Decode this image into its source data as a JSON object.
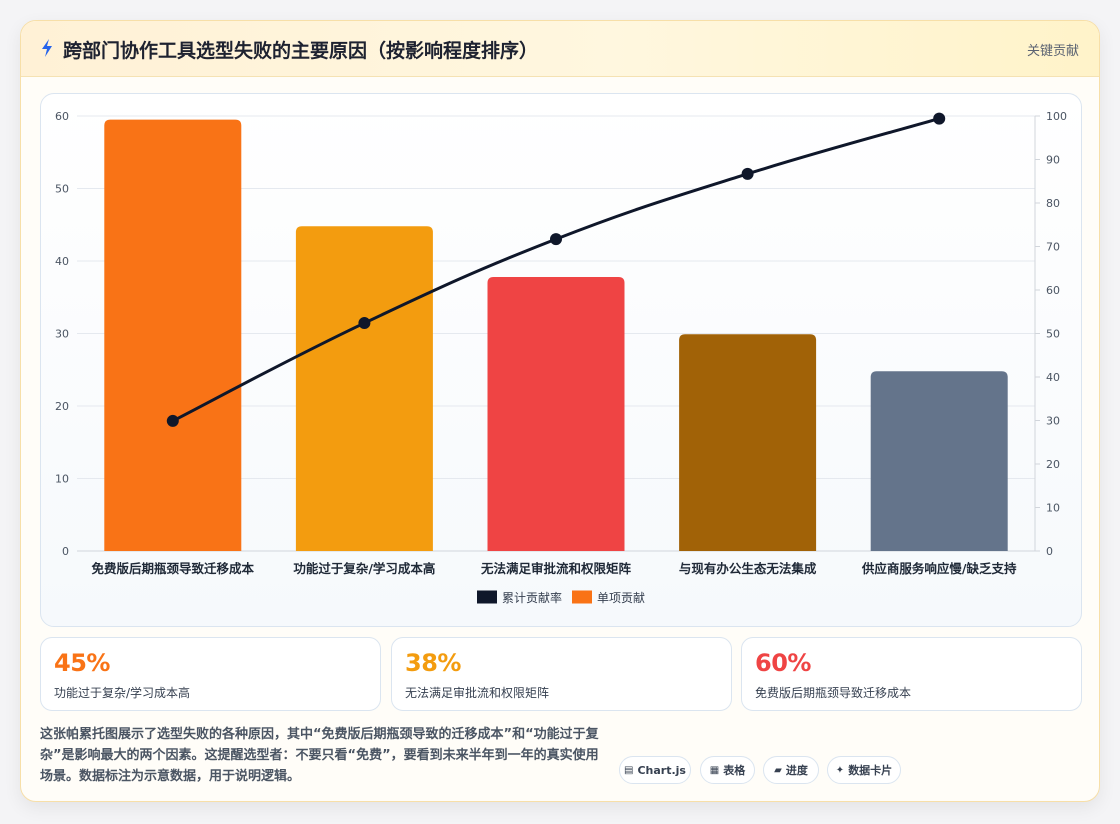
{
  "header": {
    "icon": "lightning-icon",
    "title": "跨部门协作工具选型失败的主要原因（按影响程度排序）",
    "tag": "关键贡献"
  },
  "chart_data": {
    "type": "bar",
    "categories": [
      "免费版后期瓶颈导致迁移成本",
      "功能过于复杂/学习成本高",
      "无法满足审批流和权限矩阵",
      "与现有办公生态无法集成",
      "供应商服务响应慢/缺乏支持"
    ],
    "series": [
      {
        "name": "单项贡献",
        "type": "bar",
        "axis": "left",
        "values": [
          59.5,
          44.8,
          37.8,
          29.9,
          24.8
        ],
        "colors": [
          "#f97316",
          "#f39c0f",
          "#ef4444",
          "#a16207",
          "#64748b"
        ]
      },
      {
        "name": "累计贡献率",
        "type": "line",
        "axis": "right",
        "values": [
          29.9,
          52.4,
          71.7,
          86.7,
          99.4
        ],
        "color": "#0f172a"
      }
    ],
    "ylim": [
      0,
      60
    ],
    "y_ticks": [
      0,
      10,
      20,
      30,
      40,
      50,
      60
    ],
    "y2lim": [
      0,
      100
    ],
    "y2_ticks": [
      0,
      10,
      20,
      30,
      40,
      50,
      60,
      70,
      80,
      90,
      100
    ],
    "legend": [
      {
        "label": "累计贡献率",
        "color": "#0f172a"
      },
      {
        "label": "单项贡献",
        "color": "#f97316"
      }
    ],
    "legend_position": "bottom",
    "grid": true
  },
  "stats": [
    {
      "value": "45%",
      "label": "功能过于复杂/学习成本高",
      "color": "#f97316"
    },
    {
      "value": "38%",
      "label": "无法满足审批流和权限矩阵",
      "color": "#f39c0f"
    },
    {
      "value": "60%",
      "label": "免费版后期瓶颈导致迁移成本",
      "color": "#ef4444"
    }
  ],
  "description": "这张帕累托图展示了选型失败的各种原因，其中“免费版后期瓶颈导致的迁移成本”和“功能过于复杂”是影响最大的两个因素。这提醒选型者：不要只看“免费”，要看到未来半年到一年的真实使用场景。数据标注为示意数据，用于说明逻辑。",
  "pills": [
    {
      "icon": "chart-icon",
      "glyph": "▤",
      "label": "Chart.js"
    },
    {
      "icon": "table-icon",
      "glyph": "▦",
      "label": "表格"
    },
    {
      "icon": "progress-icon",
      "glyph": "▰",
      "label": "进度"
    },
    {
      "icon": "sparkle-icon",
      "glyph": "✦",
      "label": "数据卡片"
    }
  ]
}
